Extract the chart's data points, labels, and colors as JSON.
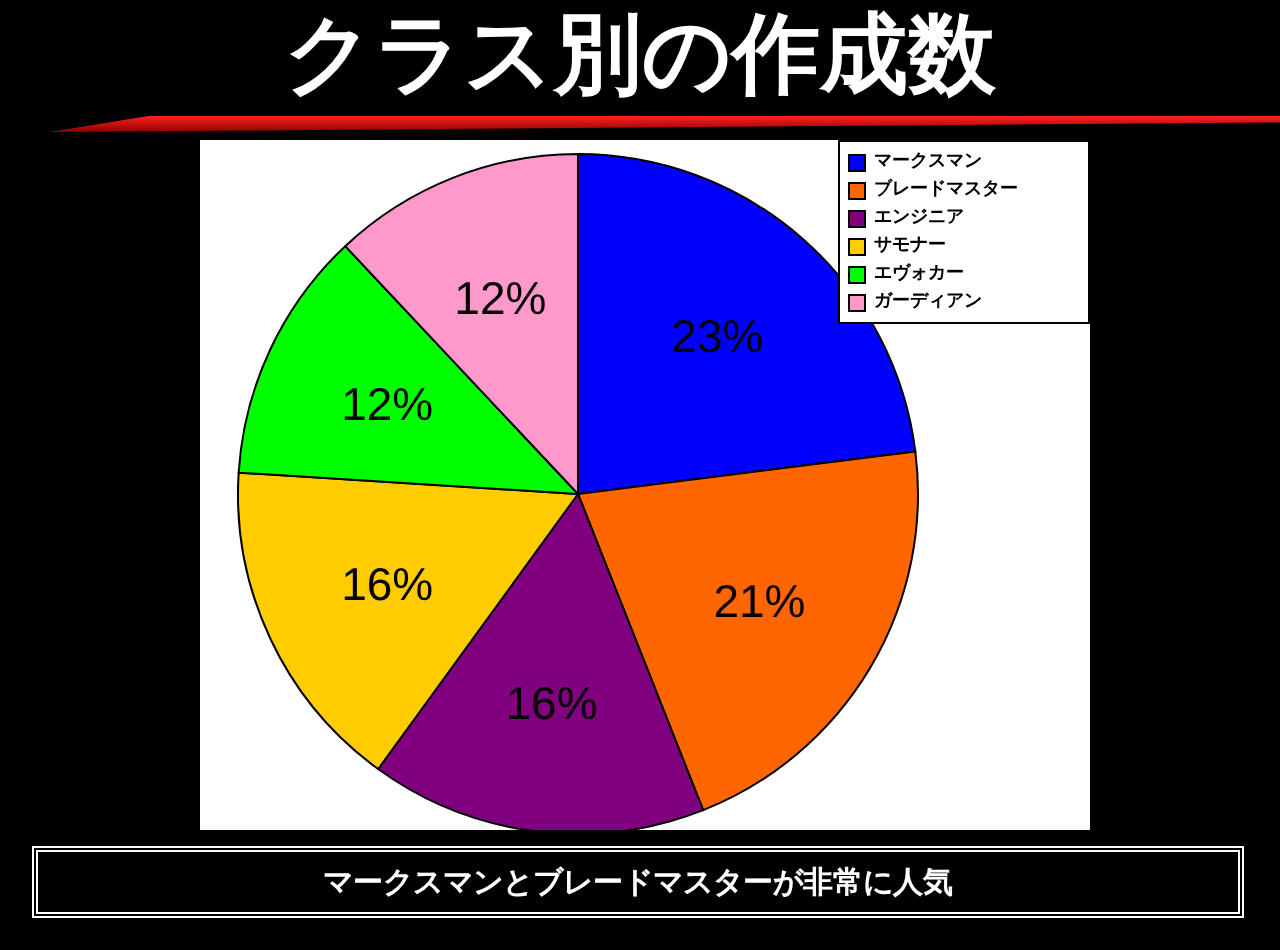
{
  "chart_data": {
    "type": "pie",
    "title": "クラス別の作成数",
    "categories": [
      "マークスマン",
      "ブレードマスター",
      "エンジニア",
      "サモナー",
      "エヴォカー",
      "ガーディアン"
    ],
    "values": [
      23,
      21,
      16,
      16,
      12,
      12
    ],
    "colors": [
      "#0000ff",
      "#ff6600",
      "#800080",
      "#ffcc00",
      "#00ff00",
      "#ff99cc"
    ],
    "value_labels": [
      "23%",
      "21%",
      "16%",
      "16%",
      "12%",
      "12%"
    ],
    "legend": "top right",
    "annotations": [
      "マークスマンとブレードマスターが非常に人気"
    ]
  }
}
